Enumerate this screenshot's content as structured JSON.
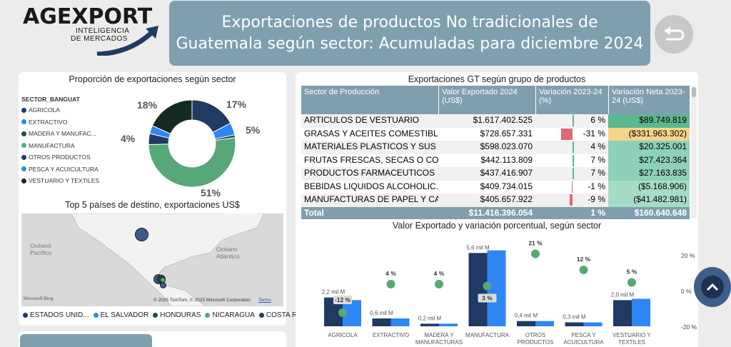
{
  "logo": {
    "main": "AGEXPORT",
    "sub1": "INTELIGENCIA",
    "sub2": "DE MERCADOS"
  },
  "header": {
    "title": "Exportaciones de productos No tradicionales de\nGuatemala según sector:  Acumuladas para diciembre 2024"
  },
  "donut": {
    "title": "Proporción de exportaciones según sector",
    "legend_title": "SECTOR_BANGUAT",
    "legend": [
      {
        "label": "AGRICOLA",
        "color": "#1f3b63"
      },
      {
        "label": "EXTRACTIVO",
        "color": "#2e86f5"
      },
      {
        "label": "MADERA Y MANUFAC...",
        "color": "#1f4d40"
      },
      {
        "label": "MANUFACTURA",
        "color": "#57a778"
      },
      {
        "label": "OTROS PRODUCTOS",
        "color": "#1f3b63"
      },
      {
        "label": "PESCA Y ACUICULTURA",
        "color": "#2e86f5"
      },
      {
        "label": "VESTUARIO Y TEXTILES",
        "color": "#152b22"
      }
    ],
    "labels": {
      "p18": "18%",
      "p17": "17%",
      "p5": "5%",
      "p4": "4%",
      "p51": "51%"
    }
  },
  "map": {
    "title": "Top 5 países de destino, exportaciones US$",
    "ocean1": "Océano\nPacífico",
    "ocean2": "Océano\nAtlántico",
    "bing": "Microsoft Bing",
    "copyright": "© 2025 TomTom, © 2025 Microsoft Corporation",
    "terms": "Terms",
    "legend": [
      {
        "label": "ESTADOS UNID...",
        "color": "#1f3b63"
      },
      {
        "label": "EL SALVADOR",
        "color": "#2e86f5"
      },
      {
        "label": "HONDURAS",
        "color": "#1f4d40"
      },
      {
        "label": "NICARAGUA",
        "color": "#57a778"
      },
      {
        "label": "COSTA RICA",
        "color": "#1f3b63"
      }
    ]
  },
  "table": {
    "title": "Exportaciones GT según grupo de productos",
    "headers": {
      "c1": "Sector de Producción",
      "c2": "Valor Exportado 2024 (US$)",
      "c3": "Variación 2023-24 (%)",
      "c4": "Variación Neta 2023-24 (US$)"
    },
    "rows": [
      {
        "sector": "ARTICULOS DE VESTUARIO",
        "valor": "$1.617.402.525",
        "var": "6 %",
        "neta": "$89.749.819",
        "neta_bg": "#5ab88f",
        "bar": "pos"
      },
      {
        "sector": "GRASAS Y ACEITES COMESTIBLES",
        "valor": "$728.657.331",
        "var": "-31 %",
        "neta": "($331.963.302)",
        "neta_bg": "#f5d58a",
        "bar": "neg-big"
      },
      {
        "sector": "MATERIALES PLASTICOS Y SUS ...",
        "valor": "$598.023.070",
        "var": "4 %",
        "neta": "$20.325.001",
        "neta_bg": "#8fd0b8",
        "bar": "pos"
      },
      {
        "sector": "FRUTAS FRESCAS, SECAS O CON...",
        "valor": "$442.113.809",
        "var": "7 %",
        "neta": "$27.423.364",
        "neta_bg": "#8fd0b8",
        "bar": "pos"
      },
      {
        "sector": "PRODUCTOS FARMACEUTICOS",
        "valor": "$437.416.907",
        "var": "7 %",
        "neta": "$27.163.835",
        "neta_bg": "#8fd0b8",
        "bar": "pos"
      },
      {
        "sector": "BEBIDAS LIQUIDOS ALCOHOLIC...",
        "valor": "$409.734.015",
        "var": "-1 %",
        "neta": "($5.168.906)",
        "neta_bg": "#a6dcc6",
        "bar": "neg-small"
      },
      {
        "sector": "MANUFACTURAS DE PAPEL Y CA...",
        "valor": "$405.657.922",
        "var": "-9 %",
        "neta": "($41.482.981)",
        "neta_bg": "#a6dcc6",
        "bar": "neg-med"
      }
    ],
    "total": {
      "label": "Total",
      "valor": "$11.416.396.054",
      "var": "1 %",
      "neta": "$160.640.648"
    }
  },
  "chart_data": {
    "type": "bar",
    "title": "Valor Exportado y variación porcentual, según sector",
    "categories": [
      "AGRICOLA",
      "EXTRACTIVO",
      "MADERA Y\nMANUFACTURAS",
      "MANUFACTURA",
      "OTROS\nPRODUCTOS",
      "PESCA Y\nACUICULTURA",
      "VESTUARIO Y\nTEXTILES"
    ],
    "value_labels": [
      "2,2 mil M",
      "0,6 mil M",
      "0,2 mil M",
      "5,6 mil M",
      "0,4 mil M",
      "0,3 mil M",
      "2,0 mil M"
    ],
    "series": [
      {
        "values": [
          2.2,
          0.6,
          0.2,
          5.6,
          0.4,
          0.3,
          2.0
        ],
        "color": "#1f3b63"
      },
      {
        "values": [
          2.0,
          0.6,
          0.2,
          5.8,
          0.4,
          0.3,
          2.1
        ],
        "color": "#2e86f5"
      }
    ],
    "pct": [
      -12,
      4,
      4,
      3,
      21,
      12,
      5
    ],
    "pct_labels": [
      "-12 %",
      "4 %",
      "4 %",
      "3 %",
      "21 %",
      "12 %",
      "5 %"
    ],
    "right_axis": [
      "20 %",
      "0 %",
      "-20 %"
    ],
    "ylim": [
      0,
      6
    ]
  }
}
